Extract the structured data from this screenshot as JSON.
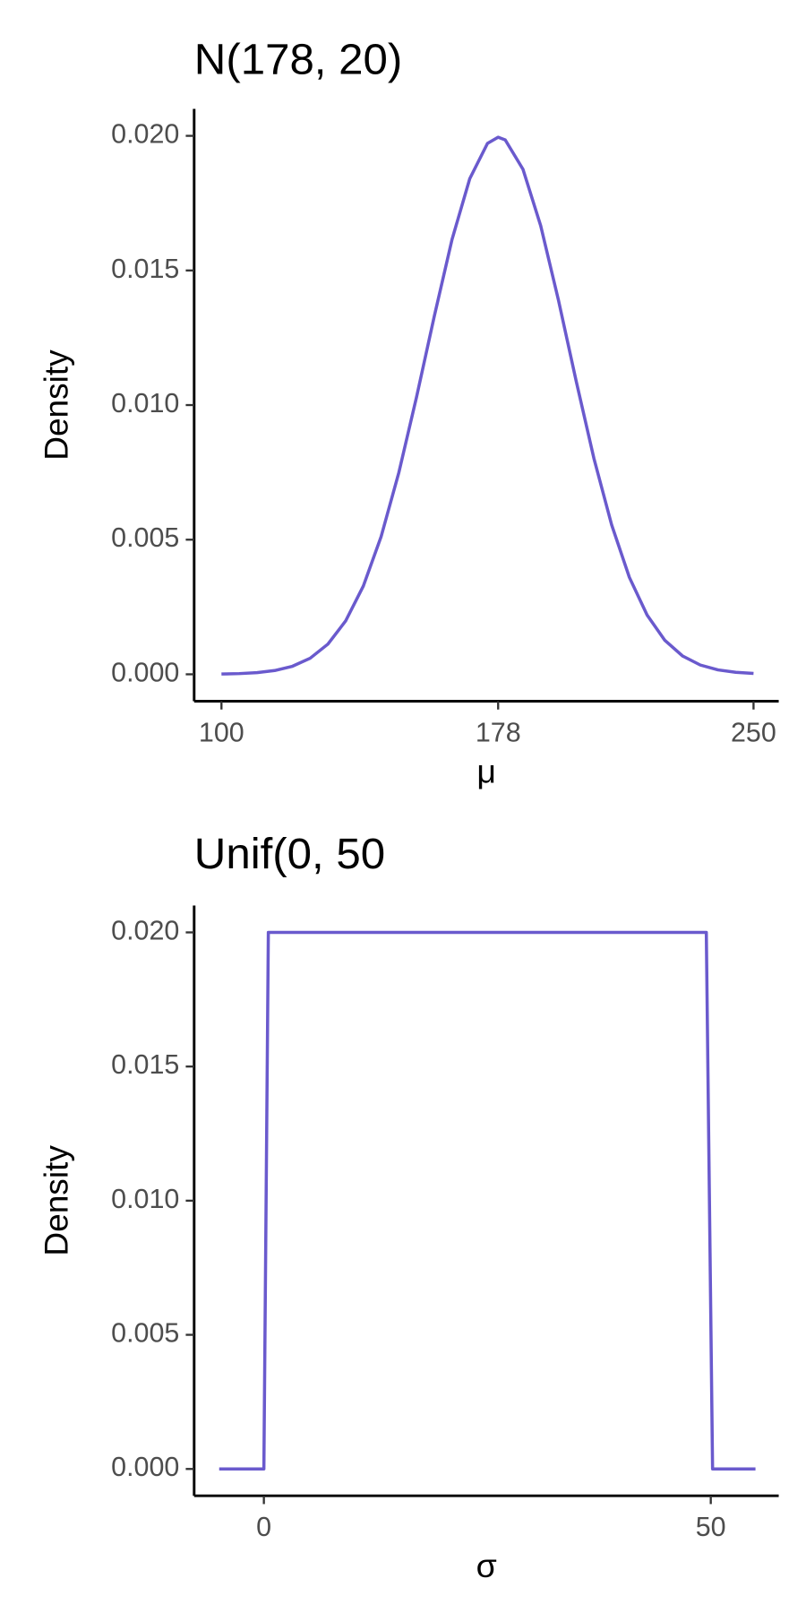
{
  "chart_data": [
    {
      "type": "line",
      "title": "N(178, 20)",
      "x_label": "μ",
      "y_label": "Density",
      "color": "#6a5acd",
      "x": [
        100,
        105,
        110,
        115,
        120,
        125,
        130,
        135,
        140,
        145,
        150,
        155,
        160,
        165,
        170,
        175,
        178,
        180,
        185,
        190,
        195,
        200,
        205,
        210,
        215,
        220,
        225,
        230,
        235,
        240,
        245,
        250
      ],
      "values": [
        1e-05,
        2.55e-05,
        6.16e-05,
        0.00014,
        0.000298,
        0.000596,
        0.00112,
        0.00198,
        0.00328,
        0.00511,
        0.00749,
        0.0103,
        0.0133,
        0.01615,
        0.01841,
        0.01972,
        0.01995,
        0.01985,
        0.01876,
        0.01666,
        0.0139,
        0.01089,
        0.00802,
        0.00555,
        0.0036,
        0.0022,
        0.00126,
        0.00068,
        0.000344,
        0.000163,
        7.29e-05,
        3.06e-05
      ],
      "xlim": [
        92.3,
        257.1
      ],
      "ylim": [
        -0.001,
        0.021
      ],
      "xticks": [
        100,
        178,
        250
      ],
      "yticks": [
        {
          "value": 0,
          "label": "0.000"
        },
        {
          "value": 0.005,
          "label": "0.005"
        },
        {
          "value": 0.01,
          "label": "0.010"
        },
        {
          "value": 0.015,
          "label": "0.015"
        },
        {
          "value": 0.02,
          "label": "0.020"
        }
      ]
    },
    {
      "type": "line",
      "title": "Unif(0, 50",
      "x_label": "σ",
      "y_label": "Density",
      "color": "#6a5acd",
      "x": [
        -5,
        0,
        0.5,
        49.5,
        50.2,
        55
      ],
      "values": [
        0,
        0,
        0.02,
        0.02,
        0,
        0
      ],
      "xlim": [
        -7.8,
        57.6
      ],
      "ylim": [
        -0.001,
        0.021
      ],
      "xticks": [
        0,
        50
      ],
      "yticks": [
        {
          "value": 0,
          "label": "0.000"
        },
        {
          "value": 0.005,
          "label": "0.005"
        },
        {
          "value": 0.01,
          "label": "0.010"
        },
        {
          "value": 0.015,
          "label": "0.015"
        },
        {
          "value": 0.02,
          "label": "0.020"
        }
      ]
    }
  ]
}
